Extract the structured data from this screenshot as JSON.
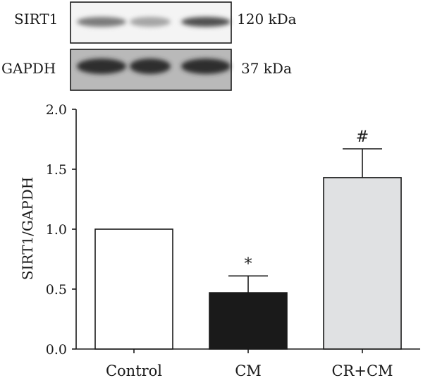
{
  "blot": {
    "rows": [
      {
        "protein": "SIRT1",
        "size": "120 kDa",
        "intensity": [
          0.55,
          0.35,
          0.75
        ]
      },
      {
        "protein": "GAPDH",
        "size": "37 kDa",
        "intensity": [
          0.9,
          0.9,
          0.9
        ]
      }
    ]
  },
  "chart_data": {
    "type": "bar",
    "title": "",
    "xlabel": "",
    "ylabel": "SIRT1/GAPDH",
    "ylim": [
      0,
      2.0
    ],
    "yticks": [
      "0.0",
      "0.5",
      "1.0",
      "1.5",
      "2.0"
    ],
    "categories": [
      "Control",
      "CM",
      "CR+CM"
    ],
    "values": [
      1.0,
      0.47,
      1.43
    ],
    "error": [
      0,
      0.14,
      0.24
    ],
    "annotations": [
      "",
      "*",
      "#"
    ],
    "colors": [
      "#ffffff",
      "#1a1a1a",
      "#e0e1e3"
    ]
  }
}
